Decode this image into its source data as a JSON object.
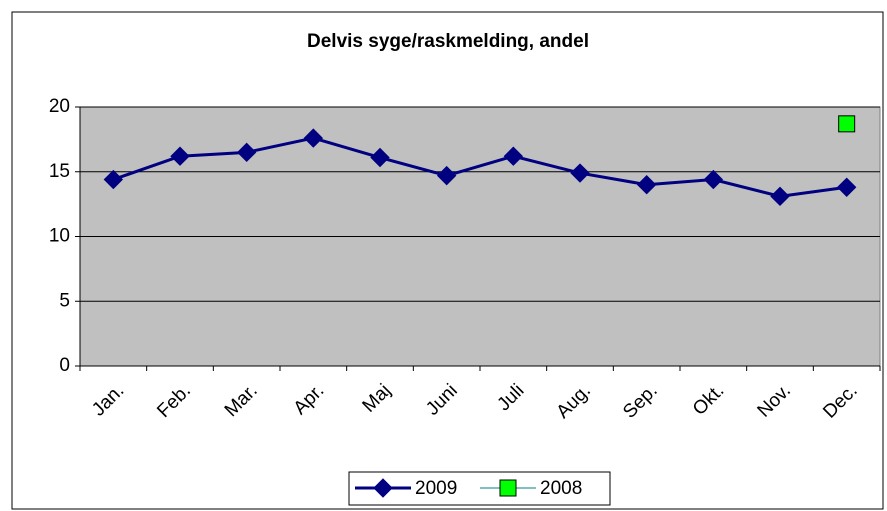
{
  "chart_data": {
    "type": "line",
    "title": "Delvis syge/raskmelding, andel",
    "categories": [
      "Jan.",
      "Feb.",
      "Mar.",
      "Apr.",
      "Maj",
      "Juni",
      "Juli",
      "Aug.",
      "Sep.",
      "Okt.",
      "Nov.",
      "Dec."
    ],
    "series": [
      {
        "name": "2009",
        "color": "#000080",
        "marker": "diamond",
        "values": [
          14.4,
          16.2,
          16.5,
          17.6,
          16.1,
          14.7,
          16.2,
          14.9,
          14.0,
          14.4,
          13.1,
          13.8
        ]
      },
      {
        "name": "2008",
        "color": "#00ff00",
        "marker": "square",
        "values": [
          null,
          null,
          null,
          null,
          null,
          null,
          null,
          null,
          null,
          null,
          null,
          18.7
        ]
      }
    ],
    "ylim": [
      0,
      20
    ],
    "yticks": [
      0,
      5,
      10,
      15,
      20
    ],
    "grid": true,
    "legend": "bottom"
  }
}
